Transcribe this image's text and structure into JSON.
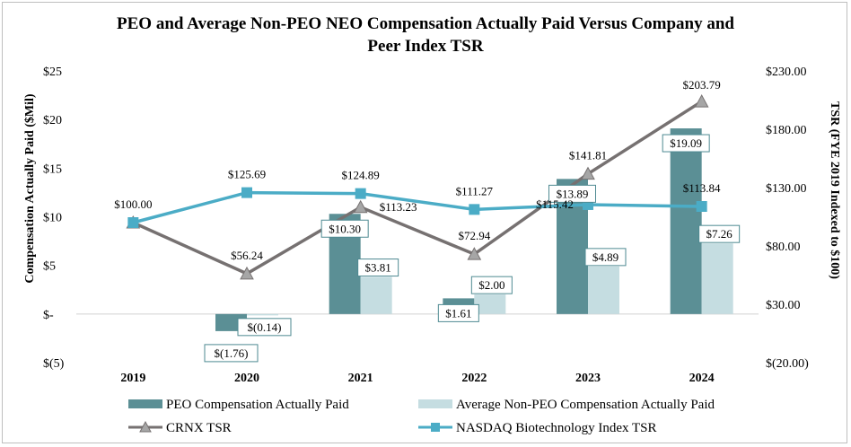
{
  "chart_data": {
    "type": "bar+line",
    "title_lines": [
      "PEO and Average Non-PEO NEO Compensation Actually Paid Versus Company and",
      "Peer Index TSR"
    ],
    "categories": [
      "2019",
      "2020",
      "2021",
      "2022",
      "2023",
      "2024"
    ],
    "ylabel_left": "Compensation Actually Paid ($Mil)",
    "ylabel_right": "TSR (FYE 2019 Indexed to $100)",
    "ylim_left": [
      -5,
      25
    ],
    "ylim_right": [
      -20,
      230
    ],
    "left_ticks": [
      "$(5)",
      "$-",
      "$5",
      "$10",
      "$15",
      "$20",
      "$25"
    ],
    "left_tick_values": [
      -5,
      0,
      5,
      10,
      15,
      20,
      25
    ],
    "right_ticks": [
      "$(20.00)",
      "$30.00",
      "$80.00",
      "$130.00",
      "$180.00",
      "$230.00"
    ],
    "right_tick_values": [
      -20,
      30,
      80,
      130,
      180,
      230
    ],
    "bar_series": [
      {
        "name": "PEO Compensation Actually Paid",
        "color": "#5b8f95",
        "values": [
          null,
          -1.76,
          10.3,
          1.61,
          13.89,
          19.09
        ],
        "labels": [
          "",
          "$(1.76)",
          "$10.30",
          "$1.61",
          "$13.89",
          "$19.09"
        ]
      },
      {
        "name": "Average Non-PEO Compensation Actually Paid",
        "color": "#c5dde1",
        "values": [
          null,
          -0.14,
          3.81,
          2.0,
          4.89,
          7.26
        ],
        "labels": [
          "",
          "$(0.14)",
          "$3.81",
          "$2.00",
          "$4.89",
          "$7.26"
        ]
      }
    ],
    "line_series": [
      {
        "name": "CRNX TSR",
        "color": "#767171",
        "marker": "triangle",
        "values": [
          100.0,
          56.24,
          113.23,
          72.94,
          141.81,
          203.79
        ],
        "labels": [
          "$100.00",
          "$56.24",
          "$113.23",
          "$72.94",
          "$141.81",
          "$203.79"
        ]
      },
      {
        "name": "NASDAQ Biotechnology Index TSR",
        "color": "#4bacc6",
        "marker": "square",
        "values": [
          100.0,
          125.69,
          124.89,
          111.27,
          115.42,
          113.84
        ],
        "labels": [
          "",
          "$125.69",
          "$124.89",
          "$111.27",
          "$115.42",
          "$113.84"
        ]
      }
    ],
    "legend_position": "bottom"
  }
}
